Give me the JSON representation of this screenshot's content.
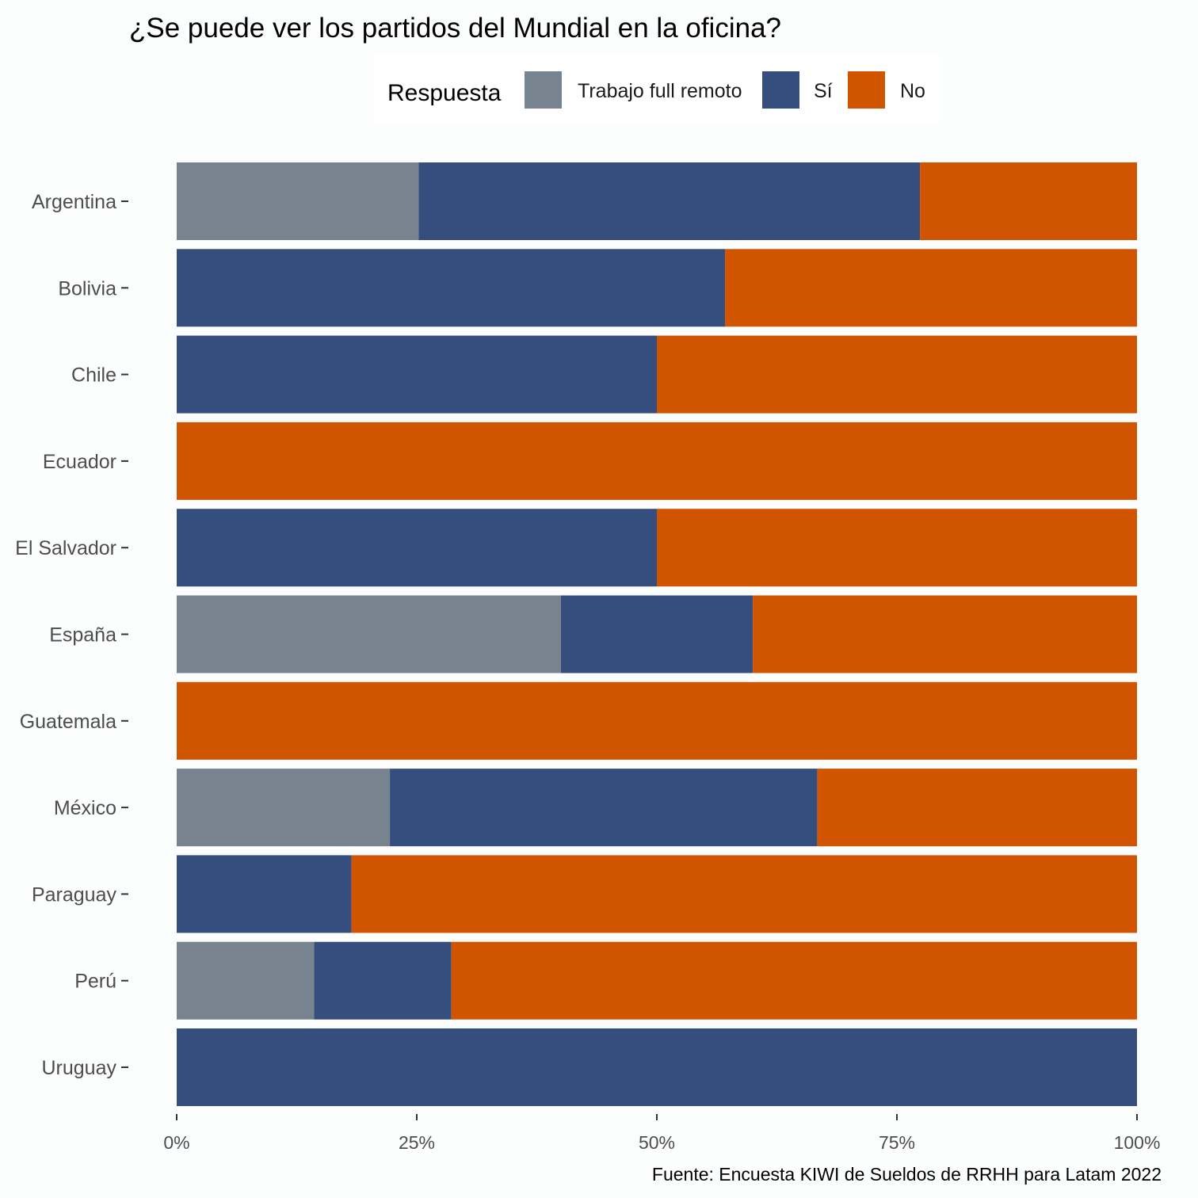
{
  "chart_data": {
    "type": "bar",
    "orientation": "horizontal",
    "stacked": "percent",
    "title": "¿Se puede ver los partidos del Mundial en la oficina?",
    "caption": "Fuente: Encuesta KIWI de Sueldos de RRHH para Latam 2022",
    "legend_title": "Respuesta",
    "legend_position": "top",
    "categories": [
      "Argentina",
      "Bolivia",
      "Chile",
      "Ecuador",
      "El Salvador",
      "España",
      "Guatemala",
      "México",
      "Paraguay",
      "Perú",
      "Uruguay"
    ],
    "series": [
      {
        "name": "Trabajo full remoto",
        "color": "#77838E",
        "values": [
          25.2,
          0,
          0,
          0,
          0,
          40,
          0,
          22.2,
          0,
          14.3,
          0
        ]
      },
      {
        "name": "Sí",
        "color": "#364E7D",
        "values": [
          52.2,
          57.1,
          50,
          0,
          50,
          20,
          0,
          44.5,
          18.2,
          14.3,
          100
        ]
      },
      {
        "name": "No",
        "color": "#D15400",
        "values": [
          22.6,
          42.9,
          50,
          100,
          50,
          40,
          100,
          33.3,
          81.8,
          71.4,
          0
        ]
      }
    ],
    "xlim": [
      0,
      100
    ],
    "x_ticks": [
      "0%",
      "25%",
      "50%",
      "75%",
      "100%"
    ],
    "grid": false
  }
}
